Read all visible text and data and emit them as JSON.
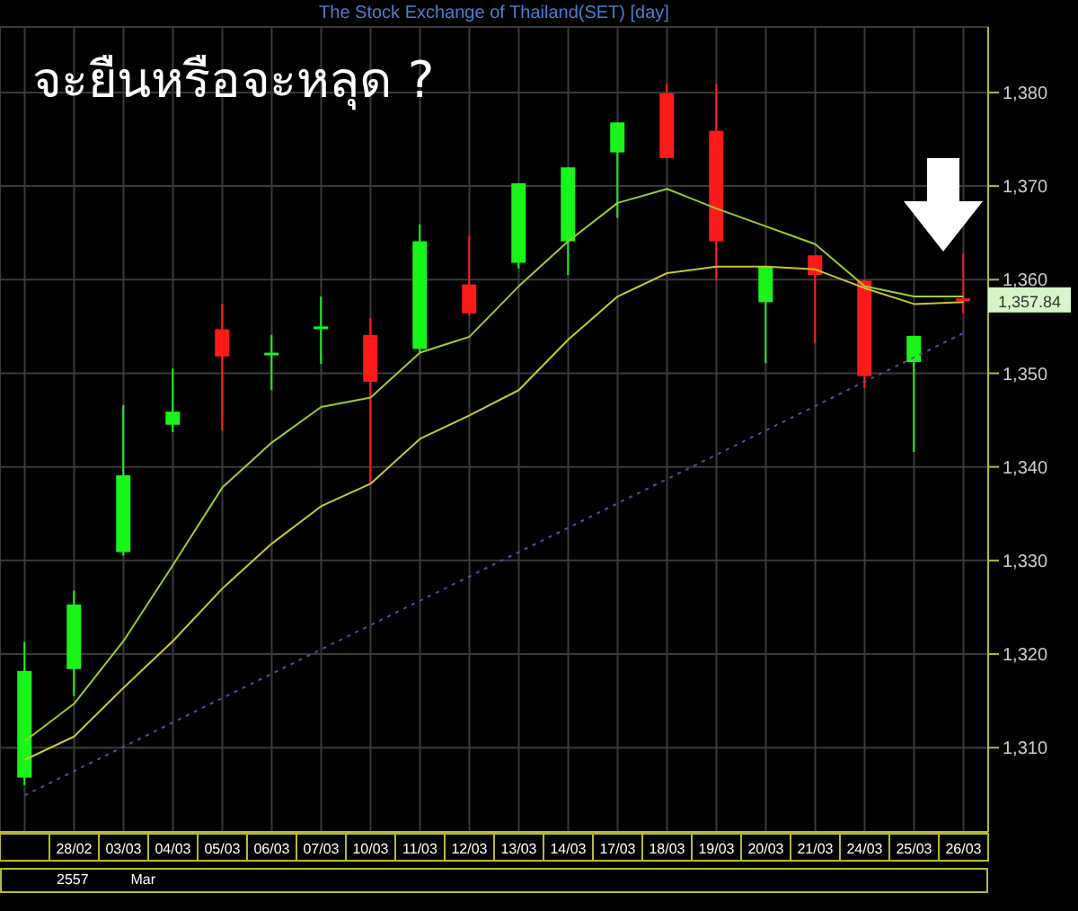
{
  "chart_data": {
    "type": "candlestick",
    "title": "The Stock Exchange of Thailand(SET) [day]",
    "subtitle": "จะยืนหรือจะหลุด ?",
    "categories": [
      null,
      "28/02",
      "03/03",
      "04/03",
      "05/03",
      "06/03",
      "07/03",
      "10/03",
      "11/03",
      "12/03",
      "13/03",
      "14/03",
      "17/03",
      "18/03",
      "19/03",
      "20/03",
      "21/03",
      "24/03",
      "25/03",
      "26/03"
    ],
    "ohlc": [
      [
        1306.8,
        1321.3,
        1306.0,
        1318.2
      ],
      [
        1318.4,
        1326.8,
        1315.5,
        1325.3
      ],
      [
        1330.9,
        1346.6,
        1330.5,
        1339.1
      ],
      [
        1344.5,
        1350.5,
        1343.7,
        1345.9
      ],
      [
        1354.7,
        1357.4,
        1343.9,
        1351.8
      ],
      [
        1352.0,
        1354.1,
        1348.2,
        1352.2
      ],
      [
        1354.8,
        1358.2,
        1351.0,
        1355.0
      ],
      [
        1354.1,
        1355.9,
        1338.2,
        1349.1
      ],
      [
        1352.6,
        1365.9,
        1352.2,
        1364.1
      ],
      [
        1359.5,
        1364.7,
        1356.2,
        1356.4
      ],
      [
        1361.8,
        1370.3,
        1361.2,
        1370.3
      ],
      [
        1364.1,
        1372.0,
        1360.5,
        1372.0
      ],
      [
        1373.6,
        1376.8,
        1366.6,
        1376.8
      ],
      [
        1379.9,
        1380.9,
        1373.0,
        1373.0
      ],
      [
        1375.9,
        1380.9,
        1359.9,
        1364.1
      ],
      [
        1357.6,
        1361.4,
        1351.1,
        1361.4
      ],
      [
        1362.6,
        1362.6,
        1353.2,
        1360.5
      ],
      [
        1359.9,
        1360.0,
        1348.4,
        1349.7
      ],
      [
        1351.2,
        1354.0,
        1341.6,
        1354.0
      ],
      [
        1358.0,
        1362.8,
        1356.4,
        1357.84
      ]
    ],
    "series": [
      {
        "type": "line",
        "color": "#9acd32",
        "values": [
          1310.7,
          1314.7,
          1321.4,
          1329.5,
          1337.8,
          1342.6,
          1346.4,
          1347.4,
          1352.2,
          1353.9,
          1359.3,
          1364.1,
          1368.2,
          1369.7,
          1367.6,
          1365.7,
          1363.8,
          1359.3,
          1358.2,
          1358.2
        ]
      },
      {
        "type": "line",
        "color": "#c8c832",
        "values": [
          1308.7,
          1311.2,
          1316.4,
          1321.4,
          1327.0,
          1331.8,
          1335.8,
          1338.2,
          1343.0,
          1345.5,
          1348.2,
          1353.6,
          1358.2,
          1360.7,
          1361.4,
          1361.4,
          1361.1,
          1359.1,
          1357.4,
          1357.6
        ]
      },
      {
        "type": "line",
        "color": "#6a3fb0",
        "line_style": "dotted",
        "values": [
          1304.9,
          1307.5,
          1310.1,
          1312.7,
          1315.3,
          1317.9,
          1320.5,
          1323.1,
          1325.7,
          1328.3,
          1330.9,
          1333.5,
          1336.1,
          1338.7,
          1341.3,
          1343.9,
          1346.5,
          1349.1,
          1351.7,
          1354.3
        ]
      }
    ],
    "ylim": [
      1301,
      1387
    ],
    "yticks": [
      {
        "value": 1310,
        "label": "1,310"
      },
      {
        "value": 1320,
        "label": "1,320"
      },
      {
        "value": 1330,
        "label": "1,330"
      },
      {
        "value": 1340,
        "label": "1,340"
      },
      {
        "value": 1350,
        "label": "1,350"
      },
      {
        "value": 1360,
        "label": "1,360"
      },
      {
        "value": 1370,
        "label": "1,370"
      },
      {
        "value": 1380,
        "label": "1,380"
      }
    ],
    "grid": true,
    "marker": "none",
    "annotations": [
      {
        "text": "1,357.84",
        "x": "26/03",
        "y": 1357.84
      },
      "2557",
      "Mar"
    ]
  }
}
